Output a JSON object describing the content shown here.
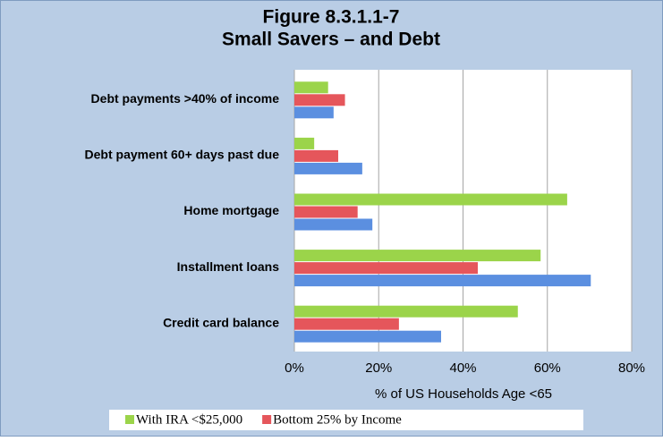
{
  "chart_data": {
    "type": "barh",
    "title": "Figure 8.3.1.1-7",
    "subtitle": "Small Savers – and Debt",
    "x_label": "% of US Households Age <65",
    "categories": [
      "Debt payments >40% of income",
      "Debt payment 60+ days past due",
      "Home mortgage",
      "Installment loans",
      "Credit card balance"
    ],
    "series": [
      {
        "name": "With IRA <$25,000",
        "color": "#9bd44a",
        "values": [
          8,
          4.7,
          64.7,
          58.4,
          53
        ]
      },
      {
        "name": "Bottom 25% by Income",
        "color": "#e5565b",
        "values": [
          12,
          10.4,
          15,
          43.5,
          24.8
        ]
      },
      {
        "color": "#5b8fe0",
        "values": [
          9.3,
          16.1,
          18.5,
          70.3,
          34.8
        ]
      }
    ],
    "xlim": [
      0,
      80
    ],
    "xticks": [
      {
        "value": 0,
        "label": "0%"
      },
      {
        "value": 20,
        "label": "20%"
      },
      {
        "value": 40,
        "label": "40%"
      },
      {
        "value": 60,
        "label": "60%"
      },
      {
        "value": 80,
        "label": "80%"
      }
    ],
    "grid": true
  }
}
